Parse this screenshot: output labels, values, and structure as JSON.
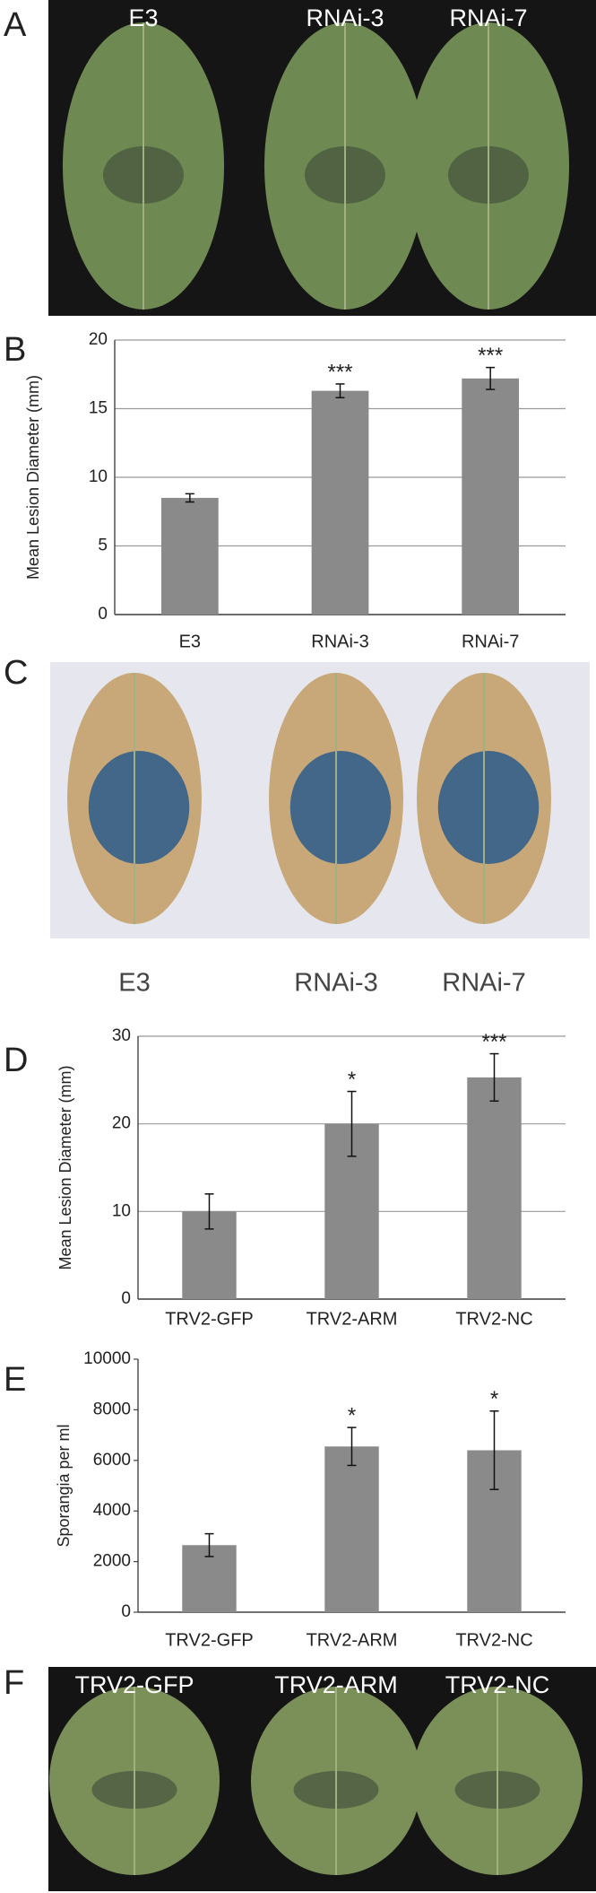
{
  "photos": [
    {
      "letter": "A",
      "labels": [
        "E3",
        "RNAi-3",
        "RNAi-7"
      ]
    },
    {
      "letter": "C",
      "labels": [
        "E3",
        "RNAi-3",
        "RNAi-7"
      ]
    },
    {
      "letter": "F",
      "labels": [
        "TRV2-GFP",
        "TRV2-ARM",
        "TRV2-NC"
      ]
    }
  ],
  "chart_data": [
    {
      "type": "bar",
      "panel_letter": "B",
      "y_label": "Mean Lesion Diameter (mm)",
      "categories": [
        "E3",
        "RNAi-3",
        "RNAi-7"
      ],
      "values": [
        8.5,
        16.3,
        17.2
      ],
      "errors": [
        0.3,
        0.5,
        0.8
      ],
      "significance": [
        null,
        "***",
        "***"
      ],
      "color": "#8a8a8a",
      "ylim": [
        0,
        20
      ],
      "yticks": [
        0,
        5,
        10,
        15,
        20
      ],
      "grid": true
    },
    {
      "type": "bar",
      "panel_letter": "D",
      "y_label": "Mean Lesion Diameter (mm)",
      "categories": [
        "TRV2-GFP",
        "TRV2-ARM",
        "TRV2-NC"
      ],
      "values": [
        10,
        20,
        25.3
      ],
      "errors": [
        2,
        3.7,
        2.7
      ],
      "significance": [
        null,
        "*",
        "***"
      ],
      "color": "#8a8a8a",
      "ylim": [
        0,
        30
      ],
      "yticks": [
        0,
        10,
        20,
        30
      ],
      "grid": true
    },
    {
      "type": "bar",
      "panel_letter": "E",
      "y_label": "Sporangia per ml",
      "categories": [
        "TRV2-GFP",
        "TRV2-ARM",
        "TRV2-NC"
      ],
      "values": [
        2650,
        6550,
        6400
      ],
      "errors": [
        450,
        750,
        1550
      ],
      "significance": [
        null,
        "*",
        "*"
      ],
      "color": "#8a8a8a",
      "ylim": [
        0,
        10000
      ],
      "yticks": [
        0,
        2000,
        4000,
        6000,
        8000,
        10000
      ],
      "grid": false
    }
  ]
}
